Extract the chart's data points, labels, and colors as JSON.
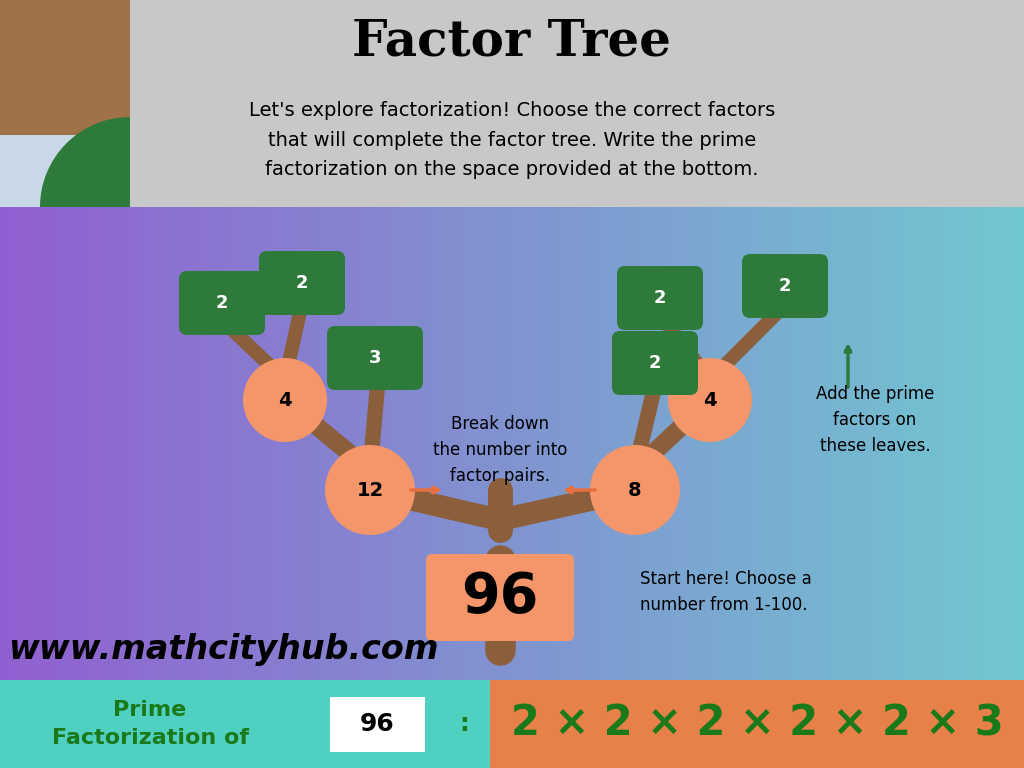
{
  "title": "Factor Tree",
  "subtitle": "Let's explore factorization! Choose the correct factors\nthat will complete the factor tree. Write the prime\nfactorization on the space provided at the bottom.",
  "tree_trunk_color": "#8B5E3C",
  "node_color": "#f4956a",
  "leaf_color": "#2d7a3a",
  "root_number": "96",
  "root_color": "#f4956a",
  "watermark": "www.mathcityhub.com",
  "prime_label": "Prime\nFactorization of",
  "prime_number": "96",
  "prime_formula": "2 × 2 × 2 × 2 × 2 × 3",
  "prime_label_color": "#1a7a1a",
  "prime_formula_color": "#1a7a1a",
  "header_color": "#c8c8c8",
  "main_bg_left": "#9060d0",
  "main_bg_right": "#70c8d0",
  "bottom_left_bg": "#50d0c0",
  "bottom_right_bg": "#e8804a",
  "brown_color": "#a0724a",
  "blue_color": "#c8d8e8",
  "green_color": "#2d7a3a"
}
